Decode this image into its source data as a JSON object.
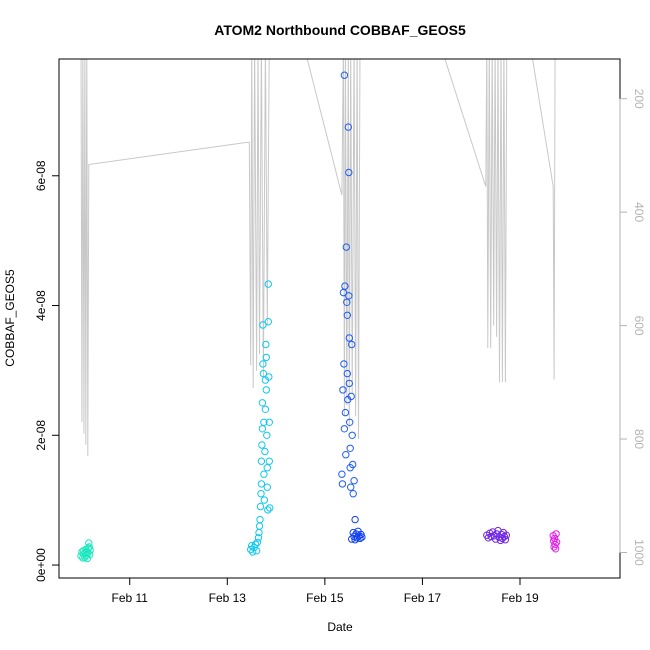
{
  "chart_data": {
    "type": "scatter",
    "title": "ATOM2 Northbound COBBAF_GEOS5",
    "xlabel": "Date",
    "ylabel": "COBBAF_GEOS5",
    "x_ticks": [
      "Feb 11",
      "Feb 13",
      "Feb 15",
      "Feb 17",
      "Feb 19"
    ],
    "x_tick_values": [
      11,
      13,
      15,
      17,
      19
    ],
    "xlim": [
      9.55,
      21.05
    ],
    "y_ticks": [
      "0e+00",
      "2e-08",
      "4e-08",
      "6e-08"
    ],
    "y_tick_values": [
      0,
      2e-08,
      4e-08,
      6e-08
    ],
    "ylim": [
      -2e-09,
      7.8e-08
    ],
    "right_axis": {
      "label": "",
      "ticks": [
        "200",
        "400",
        "600",
        "800",
        "1000"
      ],
      "tick_values": [
        200,
        400,
        600,
        800,
        1000
      ],
      "range_top_bottom": [
        130,
        1045
      ],
      "inverted": true,
      "color": "#b3b3b3"
    },
    "colors": {
      "pressure_line": "#c8c8c8",
      "points_feb10": "#1de8c0",
      "points_feb13": "#12c8ee",
      "points_feb15": "#1e5cf5",
      "points_feb15b": "#1040f0",
      "points_feb18": "#7028e6",
      "points_feb19": "#e020e6"
    },
    "series": [
      {
        "color_key": "points_feb10",
        "points": [
          [
            10.0,
            1.4e-09
          ],
          [
            10.02,
            2e-09
          ],
          [
            10.04,
            1.1e-09
          ],
          [
            10.05,
            2.2e-09
          ],
          [
            10.06,
            1.7e-09
          ],
          [
            10.08,
            1.2e-09
          ],
          [
            10.09,
            1.9e-09
          ],
          [
            10.1,
            2.4e-09
          ],
          [
            10.11,
            1.5e-09
          ],
          [
            10.12,
            2.1e-09
          ],
          [
            10.13,
            1e-09
          ],
          [
            10.14,
            1.8e-09
          ],
          [
            10.15,
            2.6e-09
          ],
          [
            10.16,
            3.4e-09
          ],
          [
            10.17,
            2.8e-09
          ],
          [
            10.18,
            1.6e-09
          ],
          [
            10.19,
            2.3e-09
          ]
        ]
      },
      {
        "color_key": "points_feb13",
        "points": [
          [
            13.48,
            2.4e-09
          ],
          [
            13.5,
            3e-09
          ],
          [
            13.52,
            2e-09
          ],
          [
            13.55,
            2.7e-09
          ],
          [
            13.58,
            3.2e-09
          ],
          [
            13.6,
            2.2e-09
          ],
          [
            13.62,
            3.5e-09
          ],
          [
            13.64,
            4.2e-09
          ],
          [
            13.65,
            5e-09
          ],
          [
            13.66,
            6e-09
          ],
          [
            13.67,
            7e-09
          ],
          [
            13.68,
            9e-09
          ],
          [
            13.69,
            1.1e-08
          ],
          [
            13.7,
            1.25e-08
          ],
          [
            13.7,
            1.6e-08
          ],
          [
            13.71,
            1.85e-08
          ],
          [
            13.72,
            2.1e-08
          ],
          [
            13.72,
            2.5e-08
          ],
          [
            13.73,
            3.1e-08
          ],
          [
            13.73,
            3.7e-08
          ],
          [
            13.74,
            2.95e-08
          ],
          [
            13.75,
            2.2e-08
          ],
          [
            13.75,
            1.4e-08
          ],
          [
            13.76,
            1e-08
          ],
          [
            13.77,
            1.75e-08
          ],
          [
            13.78,
            2.4e-08
          ],
          [
            13.78,
            2.85e-08
          ],
          [
            13.79,
            3.4e-08
          ],
          [
            13.8,
            3.2e-08
          ],
          [
            13.8,
            2.7e-08
          ],
          [
            13.81,
            2e-08
          ],
          [
            13.82,
            1.5e-08
          ],
          [
            13.82,
            1.2e-08
          ],
          [
            13.83,
            8.5e-09
          ],
          [
            13.84,
            4.33e-08
          ],
          [
            13.84,
            3.75e-08
          ],
          [
            13.85,
            2.9e-08
          ],
          [
            13.86,
            2.2e-08
          ],
          [
            13.86,
            1.6e-08
          ],
          [
            13.87,
            8.8e-09
          ]
        ]
      },
      {
        "color_key": "points_feb15",
        "points": [
          [
            15.35,
            1.4e-08
          ],
          [
            15.36,
            1.25e-08
          ],
          [
            15.37,
            2.7e-08
          ],
          [
            15.38,
            4.2e-08
          ],
          [
            15.39,
            3.1e-08
          ],
          [
            15.4,
            2.1e-08
          ],
          [
            15.4,
            7.55e-08
          ],
          [
            15.41,
            4.3e-08
          ],
          [
            15.42,
            2.35e-08
          ],
          [
            15.43,
            1.7e-08
          ],
          [
            15.44,
            4.9e-08
          ],
          [
            15.45,
            4.05e-08
          ],
          [
            15.46,
            3.85e-08
          ],
          [
            15.46,
            2.95e-08
          ],
          [
            15.47,
            2.55e-08
          ],
          [
            15.48,
            6.75e-08
          ],
          [
            15.49,
            6.05e-08
          ],
          [
            15.49,
            4.15e-08
          ],
          [
            15.5,
            3.5e-08
          ],
          [
            15.5,
            2.8e-08
          ],
          [
            15.51,
            2.2e-08
          ],
          [
            15.52,
            1.8e-08
          ],
          [
            15.52,
            1.5e-08
          ],
          [
            15.53,
            1.2e-08
          ],
          [
            15.54,
            2.6e-08
          ],
          [
            15.55,
            3.4e-08
          ],
          [
            15.56,
            2e-08
          ],
          [
            15.57,
            1.55e-08
          ],
          [
            15.58,
            1.1e-08
          ],
          [
            15.6,
            1.3e-08
          ]
        ]
      },
      {
        "color_key": "points_feb15b",
        "points": [
          [
            15.55,
            4e-09
          ],
          [
            15.58,
            5e-09
          ],
          [
            15.6,
            4.4e-09
          ],
          [
            15.62,
            3.9e-09
          ],
          [
            15.64,
            4.8e-09
          ],
          [
            15.66,
            4.2e-09
          ],
          [
            15.68,
            5.2e-09
          ],
          [
            15.7,
            4.5e-09
          ],
          [
            15.72,
            4.1e-09
          ],
          [
            15.74,
            4.7e-09
          ],
          [
            15.62,
            7e-09
          ],
          [
            15.76,
            4.3e-09
          ]
        ]
      },
      {
        "color_key": "points_feb18",
        "points": [
          [
            18.32,
            4.6e-09
          ],
          [
            18.35,
            4.2e-09
          ],
          [
            18.38,
            4.9e-09
          ],
          [
            18.41,
            4.4e-09
          ],
          [
            18.44,
            5.1e-09
          ],
          [
            18.47,
            4.5e-09
          ],
          [
            18.5,
            4e-09
          ],
          [
            18.52,
            4.8e-09
          ],
          [
            18.55,
            5.3e-09
          ],
          [
            18.57,
            4.3e-09
          ],
          [
            18.6,
            3.8e-09
          ],
          [
            18.62,
            4.7e-09
          ],
          [
            18.64,
            4.1e-09
          ],
          [
            18.66,
            5e-09
          ],
          [
            18.68,
            4.4e-09
          ],
          [
            18.7,
            3.9e-09
          ],
          [
            18.72,
            4.6e-09
          ]
        ]
      },
      {
        "color_key": "points_feb19",
        "points": [
          [
            19.68,
            4.5e-09
          ],
          [
            19.69,
            3.7e-09
          ],
          [
            19.7,
            2.8e-09
          ],
          [
            19.71,
            4.1e-09
          ],
          [
            19.72,
            3.2e-09
          ],
          [
            19.73,
            2.5e-09
          ],
          [
            19.74,
            4.8e-09
          ],
          [
            19.75,
            3.5e-09
          ]
        ]
      }
    ],
    "pressure_trace": [
      [
        9.98,
        100
      ],
      [
        10.0,
        100
      ],
      [
        10.02,
        770
      ],
      [
        10.04,
        100
      ],
      [
        10.06,
        790
      ],
      [
        10.08,
        100
      ],
      [
        10.1,
        810
      ],
      [
        10.12,
        100
      ],
      [
        10.14,
        830
      ],
      [
        10.16,
        316
      ],
      [
        13.4,
        277
      ],
      [
        13.45,
        277
      ],
      [
        13.48,
        670
      ],
      [
        13.5,
        100
      ],
      [
        13.53,
        710
      ],
      [
        13.56,
        100
      ],
      [
        13.6,
        680
      ],
      [
        13.63,
        100
      ],
      [
        13.66,
        650
      ],
      [
        13.7,
        100
      ],
      [
        13.74,
        690
      ],
      [
        13.78,
        100
      ],
      [
        13.82,
        600
      ],
      [
        13.86,
        100
      ],
      [
        14.55,
        100
      ],
      [
        15.35,
        370
      ],
      [
        15.38,
        100
      ],
      [
        15.4,
        760
      ],
      [
        15.42,
        100
      ],
      [
        15.45,
        740
      ],
      [
        15.48,
        100
      ],
      [
        15.5,
        780
      ],
      [
        15.53,
        100
      ],
      [
        15.56,
        720
      ],
      [
        15.6,
        100
      ],
      [
        15.63,
        760
      ],
      [
        15.66,
        100
      ],
      [
        15.69,
        800
      ],
      [
        15.72,
        100
      ],
      [
        17.35,
        100
      ],
      [
        18.3,
        355
      ],
      [
        18.32,
        100
      ],
      [
        18.34,
        640
      ],
      [
        18.37,
        100
      ],
      [
        18.4,
        640
      ],
      [
        18.43,
        100
      ],
      [
        18.46,
        600
      ],
      [
        18.49,
        100
      ],
      [
        18.52,
        620
      ],
      [
        18.55,
        100
      ],
      [
        18.58,
        700
      ],
      [
        18.61,
        100
      ],
      [
        18.64,
        700
      ],
      [
        18.67,
        100
      ],
      [
        18.7,
        700
      ],
      [
        18.73,
        100
      ],
      [
        19.2,
        100
      ],
      [
        19.68,
        355
      ],
      [
        19.7,
        695
      ],
      [
        19.72,
        100
      ],
      [
        19.75,
        100
      ]
    ]
  }
}
